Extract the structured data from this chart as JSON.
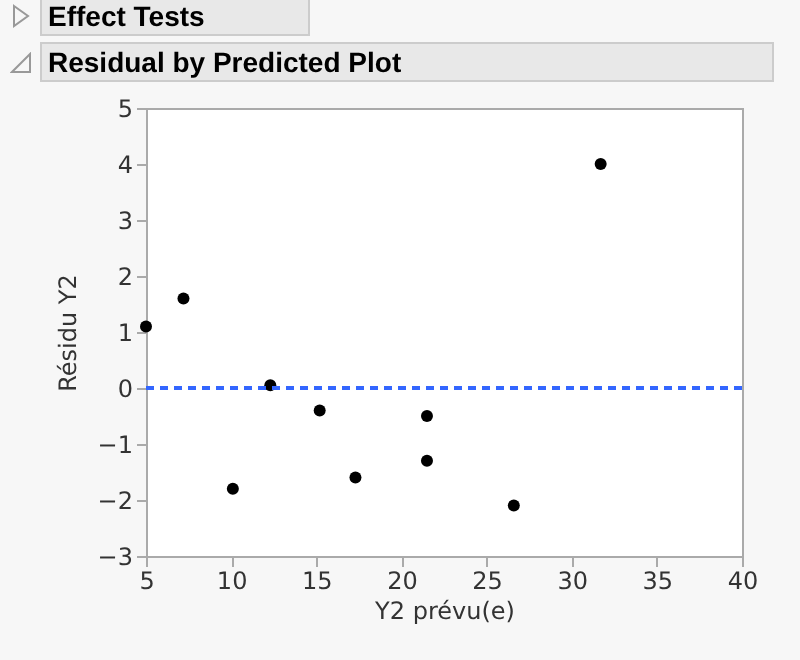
{
  "chart_data": {
    "type": "scatter",
    "title": "Residual by Predicted Plot",
    "annotations": [
      "Effect Tests"
    ],
    "xlabel": "Y2 prévu(e)",
    "ylabel": "Résidu Y2",
    "x": [
      5.0,
      7.2,
      10.1,
      12.3,
      15.2,
      17.3,
      21.5,
      21.5,
      26.6,
      31.7
    ],
    "series": [
      {
        "color": "#000000",
        "values": [
          1.1,
          1.6,
          -1.8,
          0.05,
          -0.4,
          -1.6,
          -0.5,
          -1.3,
          -2.1,
          4.0
        ]
      }
    ],
    "xlim": [
      5,
      40
    ],
    "xticks": [
      5,
      10,
      15,
      20,
      25,
      30,
      35,
      40
    ],
    "ylim": [
      -3,
      5
    ],
    "yticks": [
      -3,
      -2,
      -1,
      0,
      1,
      2,
      3,
      4,
      5
    ],
    "ref_lines": [
      {
        "axis": "y",
        "value": 0,
        "color": "#3366ff",
        "line_style": "dashed"
      }
    ],
    "grid": false,
    "marker": "circle"
  }
}
